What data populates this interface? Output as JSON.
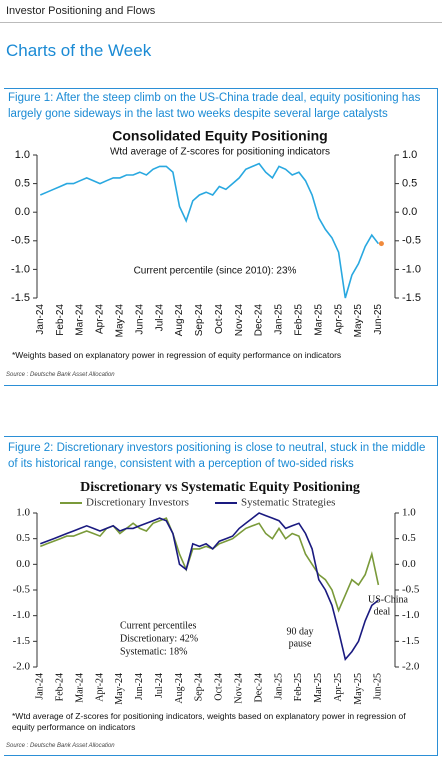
{
  "header": {
    "section": "Investor Positioning and Flows",
    "title": "Charts of the Week"
  },
  "figures": [
    {
      "caption": "Figure 1: After the steep climb on the US-China trade deal, equity positioning has largely gone sideways in the last two weeks despite several large catalysts",
      "footnote": "*Weights based on explanatory power in regression of equity performance on indicators",
      "source": "Source : Deutsche Bank Asset Allocation"
    },
    {
      "caption": "Figure 2: Discretionary investors positioning is close to neutral, stuck in the middle of its historical range, consistent with a perception of two-sided risks",
      "footnote": "*Wtd average of Z-scores for positioning indicators, weights based on explanatory power in regression of equity performance on indicators",
      "source": "Source : Deutsche Bank Asset Allocation"
    }
  ],
  "chart_data": [
    {
      "type": "line",
      "title": "Consolidated Equity Positioning",
      "subtitle": "Wtd average of Z-scores for positioning indicators",
      "annotations": [
        "Current percentile (since 2010): 23%"
      ],
      "categories": [
        "Jan-24",
        null,
        null,
        "Feb-24",
        null,
        null,
        "Mar-24",
        null,
        null,
        "Apr-24",
        null,
        null,
        "May-24",
        null,
        null,
        "Jun-24",
        null,
        null,
        "Jul-24",
        null,
        null,
        "Aug-24",
        null,
        null,
        "Sep-24",
        null,
        null,
        "Oct-24",
        null,
        null,
        "Nov-24",
        null,
        null,
        "Dec-24",
        null,
        null,
        "Jan-25",
        null,
        null,
        "Feb-25",
        null,
        null,
        "Mar-25",
        null,
        null,
        "Apr-25",
        null,
        null,
        "May-25",
        null,
        null,
        "Jun-25",
        null,
        null
      ],
      "series": [
        {
          "name": "Consolidated",
          "color": "#29a8e0",
          "values": [
            0.3,
            0.35,
            0.4,
            0.45,
            0.5,
            0.5,
            0.55,
            0.6,
            0.55,
            0.5,
            0.55,
            0.6,
            0.6,
            0.65,
            0.65,
            0.7,
            0.65,
            0.75,
            0.8,
            0.8,
            0.7,
            0.1,
            -0.15,
            0.2,
            0.3,
            0.35,
            0.3,
            0.45,
            0.4,
            0.5,
            0.6,
            0.75,
            0.8,
            0.85,
            0.7,
            0.6,
            0.8,
            0.75,
            0.65,
            0.7,
            0.55,
            0.3,
            -0.1,
            -0.3,
            -0.45,
            -0.7,
            -1.5,
            -1.1,
            -0.9,
            -0.6,
            -0.4,
            -0.55,
            null,
            null
          ]
        }
      ],
      "latest_color": "#f08a3c",
      "ylim": [
        -1.5,
        1.0
      ],
      "yticks": [
        {
          "value": 1.0,
          "label": "1.0"
        },
        0.5,
        {
          "value": 0.0,
          "label": "0.0"
        },
        -0.5,
        {
          "value": -1.0,
          "label": "-1.0"
        },
        -1.5
      ],
      "grid": false
    },
    {
      "type": "line",
      "title": "Discretionary  vs Systematic Equity Positioning",
      "annotations": [
        "Current percentiles",
        "Discretionary: 42%",
        "Systematic: 18%",
        "90 day",
        "pause",
        "US-China",
        "deal"
      ],
      "categories": [
        "Jan-24",
        null,
        null,
        "Feb-24",
        null,
        null,
        "Mar-24",
        null,
        null,
        "Apr-24",
        null,
        null,
        "May-24",
        null,
        null,
        "Jun-24",
        null,
        null,
        "Jul-24",
        null,
        null,
        "Aug-24",
        null,
        null,
        "Sep-24",
        null,
        null,
        "Oct-24",
        null,
        null,
        "Nov-24",
        null,
        null,
        "Dec-24",
        null,
        null,
        "Jan-25",
        null,
        null,
        "Feb-25",
        null,
        null,
        "Mar-25",
        null,
        null,
        "Apr-25",
        null,
        null,
        "May-25",
        null,
        null,
        "Jun-25",
        null,
        null
      ],
      "series": [
        {
          "name": "Discretionary Investors",
          "color": "#7a9a3a",
          "values": [
            0.35,
            0.4,
            0.45,
            0.5,
            0.55,
            0.55,
            0.6,
            0.65,
            0.6,
            0.55,
            0.7,
            0.75,
            0.6,
            0.7,
            0.8,
            0.7,
            0.65,
            0.8,
            0.85,
            0.9,
            0.6,
            0.2,
            -0.1,
            0.3,
            0.3,
            0.35,
            0.3,
            0.4,
            0.45,
            0.5,
            0.6,
            0.7,
            0.75,
            0.8,
            0.6,
            0.5,
            0.7,
            0.5,
            0.6,
            0.55,
            0.2,
            0.0,
            -0.2,
            -0.3,
            -0.5,
            -0.9,
            -0.6,
            -0.3,
            -0.4,
            -0.2,
            0.2,
            -0.4,
            null,
            null
          ]
        },
        {
          "name": "Systematic Strategies",
          "color": "#1a1a80",
          "values": [
            0.4,
            0.45,
            0.5,
            0.55,
            0.6,
            0.65,
            0.7,
            0.75,
            0.7,
            0.65,
            0.7,
            0.75,
            0.65,
            0.7,
            0.7,
            0.75,
            0.8,
            0.85,
            0.9,
            0.85,
            0.6,
            0.0,
            -0.1,
            0.4,
            0.35,
            0.4,
            0.3,
            0.45,
            0.5,
            0.55,
            0.7,
            0.8,
            0.9,
            1.0,
            0.95,
            0.9,
            0.85,
            0.7,
            0.75,
            0.8,
            0.6,
            0.3,
            -0.3,
            -0.5,
            -0.8,
            -1.3,
            -1.85,
            -1.7,
            -1.5,
            -1.1,
            -0.8,
            -0.7,
            null,
            null
          ]
        }
      ],
      "ylim": [
        -2.0,
        1.0
      ],
      "yticks": [
        {
          "value": 1.0,
          "label": "1.0"
        },
        0.5,
        {
          "value": 0.0,
          "label": "0.0"
        },
        -0.5,
        {
          "value": -1.0,
          "label": "-1.0"
        },
        -1.5,
        {
          "value": -2.0,
          "label": "-2.0"
        }
      ],
      "grid": false
    }
  ]
}
